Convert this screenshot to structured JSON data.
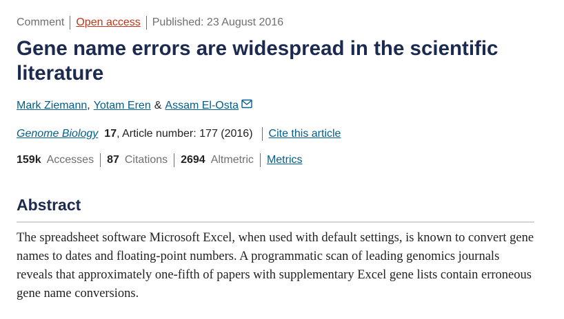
{
  "article_meta": {
    "type": "Comment",
    "access": "Open access",
    "published": "Published: 23 August 2016"
  },
  "title": "Gene name errors are widespread in the scientific literature",
  "authors": {
    "author1": "Mark Ziemann",
    "sep1": ",",
    "author2": "Yotam Eren",
    "conj": "&",
    "author3": "Assam El-Osta",
    "mail_icon": "envelope-icon"
  },
  "citation": {
    "journal": "Genome Biology",
    "volume": "17",
    "details": ", Article number: 177 (2016)",
    "cite_link": "Cite this article"
  },
  "metrics": {
    "accesses_value": "159k",
    "accesses_label": "Accesses",
    "citations_value": "87",
    "citations_label": "Citations",
    "altmetric_value": "2694",
    "altmetric_label": "Altmetric",
    "metrics_link": "Metrics"
  },
  "abstract": {
    "heading": "Abstract",
    "text": "The spreadsheet software Microsoft Excel, when used with default settings, is known to convert gene names to dates and floating-point numbers. A programmatic scan of leading genomics journals reveals that approximately one-fifth of papers with supplementary Excel gene lists contain erroneous gene name conversions."
  },
  "colors": {
    "title": "#1c2a4f",
    "link_blue": "#025e8d",
    "link_orange": "#c0361b",
    "muted": "#6f6f6f"
  }
}
